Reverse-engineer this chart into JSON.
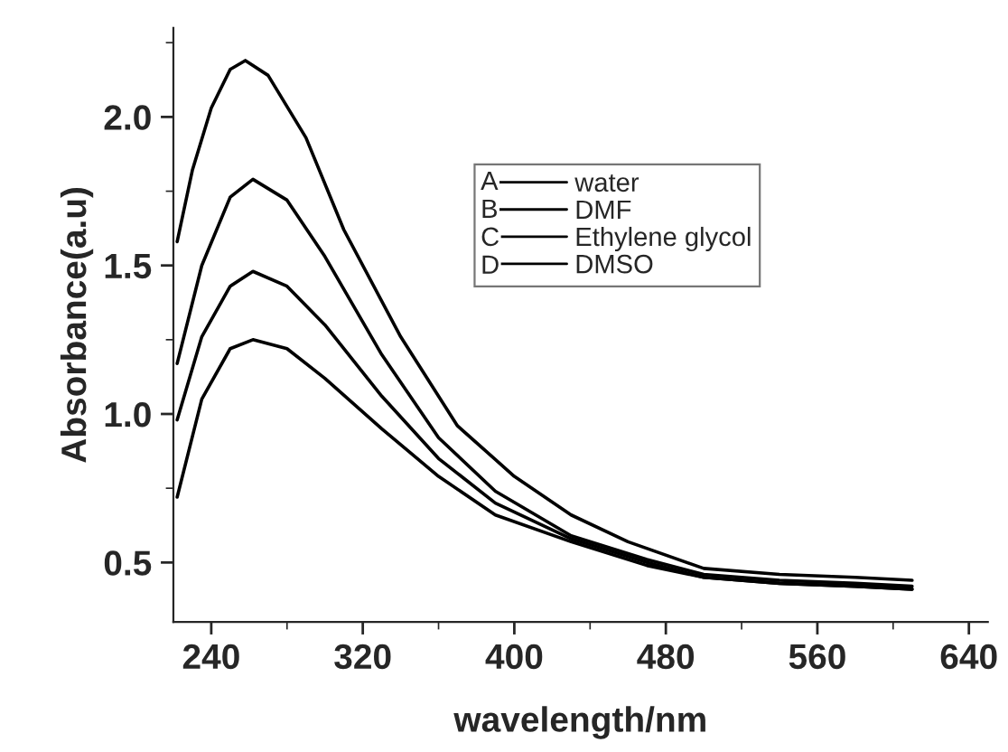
{
  "chart_data": {
    "type": "line",
    "xlabel": "wavelength/nm",
    "ylabel": "Absorbance(a.u)",
    "xlim": [
      220,
      650
    ],
    "xticks": [
      240,
      320,
      400,
      480,
      560,
      640
    ],
    "ylim": [
      0.3,
      2.3
    ],
    "yticks": [
      0.5,
      {
        "value": 1,
        "label": "1.0"
      },
      1.5,
      {
        "value": 2,
        "label": "2.0"
      }
    ],
    "grid": false,
    "legend": "top right",
    "marker": "none",
    "line_style": "solid",
    "annotations": [
      "A",
      "B",
      "C",
      "D"
    ],
    "series": [
      {
        "name": "water",
        "color": "#000000",
        "x": [
          222,
          230,
          240,
          250,
          258,
          270,
          290,
          310,
          340,
          370,
          400,
          430,
          460,
          500,
          540,
          580,
          610
        ],
        "values": [
          1.58,
          1.82,
          2.03,
          2.16,
          2.19,
          2.14,
          1.93,
          1.62,
          1.26,
          0.96,
          0.79,
          0.66,
          0.57,
          0.48,
          0.46,
          0.45,
          0.44
        ]
      },
      {
        "name": "DMF",
        "color": "#000000",
        "x": [
          222,
          235,
          250,
          262,
          280,
          300,
          330,
          360,
          390,
          430,
          470,
          500,
          540,
          580,
          610
        ],
        "values": [
          1.17,
          1.5,
          1.73,
          1.79,
          1.72,
          1.53,
          1.2,
          0.92,
          0.74,
          0.59,
          0.51,
          0.46,
          0.44,
          0.43,
          0.42
        ]
      },
      {
        "name": "Ethylene glycol",
        "color": "#000000",
        "x": [
          222,
          235,
          250,
          262,
          280,
          300,
          330,
          360,
          390,
          430,
          470,
          500,
          540,
          580,
          610
        ],
        "values": [
          0.98,
          1.26,
          1.43,
          1.48,
          1.43,
          1.3,
          1.06,
          0.85,
          0.7,
          0.58,
          0.5,
          0.45,
          0.43,
          0.42,
          0.41
        ]
      },
      {
        "name": "DMSO",
        "color": "#000000",
        "x": [
          222,
          235,
          250,
          262,
          280,
          300,
          330,
          360,
          390,
          430,
          470,
          500,
          540,
          580,
          610
        ],
        "values": [
          0.72,
          1.05,
          1.22,
          1.25,
          1.22,
          1.12,
          0.95,
          0.79,
          0.66,
          0.57,
          0.49,
          0.45,
          0.43,
          0.42,
          0.41
        ]
      }
    ]
  }
}
